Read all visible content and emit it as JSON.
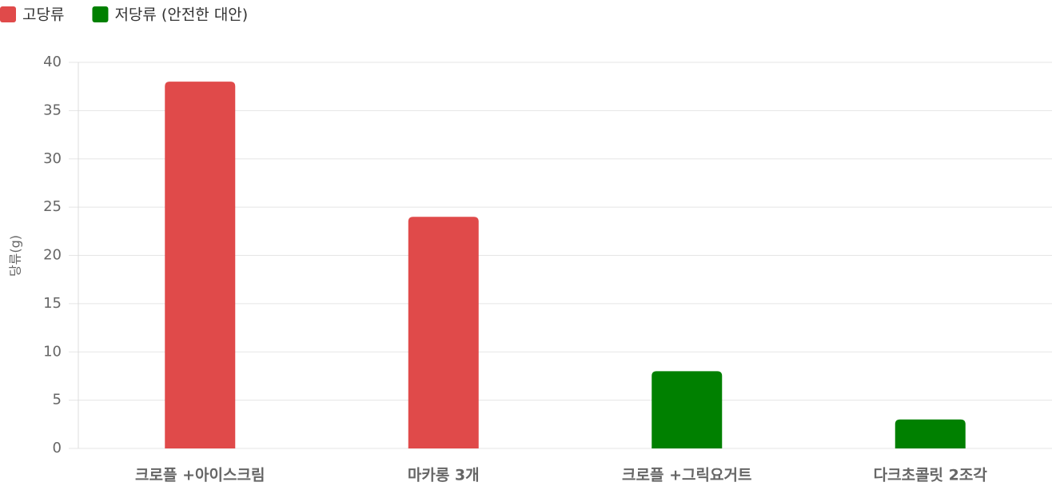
{
  "chart_data": {
    "type": "bar",
    "y_label": "당류(g)",
    "categories": [
      "크로플 +아이스크림",
      "마카롱 3개",
      "크로플 +그릭요거트",
      "다크초콜릿 2조각"
    ],
    "series": [
      {
        "name": "고당류",
        "color": "#e04a4a",
        "values": [
          38,
          24,
          null,
          null
        ]
      },
      {
        "name": "저당류 (안전한 대안)",
        "color": "#008000",
        "values": [
          null,
          null,
          8,
          3
        ]
      }
    ],
    "ylim": [
      0,
      40
    ],
    "yticks": [
      0,
      5,
      10,
      15,
      20,
      25,
      30,
      35,
      40
    ],
    "grid": true,
    "legend": "top-left"
  }
}
